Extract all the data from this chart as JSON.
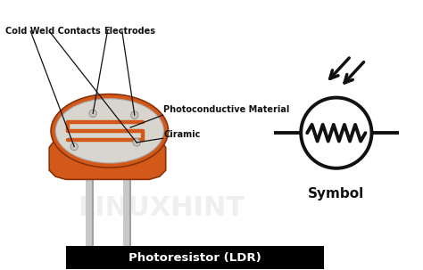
{
  "bg_color": "#ffffff",
  "title_text": "Photoresistor (LDR)",
  "title_bg": "#000000",
  "title_color": "#ffffff",
  "watermark": "LINUXHINT",
  "labels": {
    "cold_weld": "Cold Weld Contacts",
    "electrodes": "Electrodes",
    "photo_material": "Photoconductive Material",
    "ciramic": "Ciramic"
  },
  "symbol_label": "Symbol",
  "ldr_body_color": "#d2591a",
  "ldr_top_face_color": "#d8d5ce",
  "ldr_pattern_color": "#d2591a",
  "legs_color": "#c8c8c8",
  "legs_shadow_color": "#a0a0a0",
  "circle_color": "#111111",
  "line_color": "#111111",
  "arrow_color": "#111111",
  "text_color": "#111111",
  "annotation_line_color": "#111111",
  "font_size_label": 7.0,
  "font_size_title": 9.5,
  "font_size_symbol": 11
}
